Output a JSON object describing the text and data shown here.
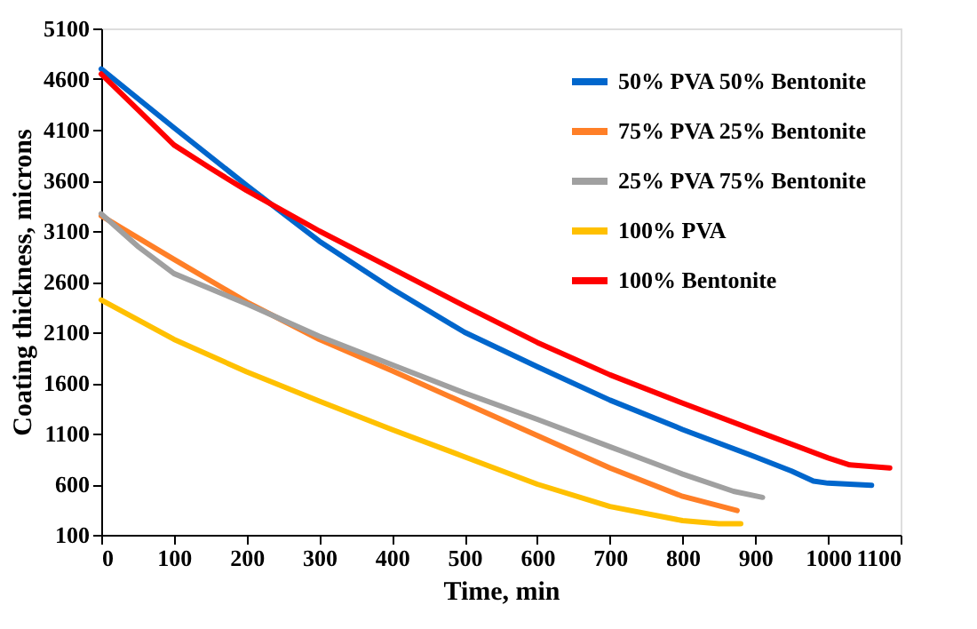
{
  "chart_data": {
    "type": "line",
    "xlabel": "Time, min",
    "ylabel": "Coating thickness, microns",
    "xlim": [
      0,
      1100
    ],
    "xticks": [
      0,
      100,
      200,
      300,
      400,
      500,
      600,
      700,
      800,
      900,
      1000,
      1100
    ],
    "ylim": [
      100,
      5100
    ],
    "yticks": [
      100,
      600,
      1100,
      1600,
      2100,
      2600,
      3100,
      3600,
      4100,
      4600,
      5100
    ],
    "grid": false,
    "legend": "top right",
    "marker": "none",
    "line_style": "solid",
    "series": [
      {
        "name": "50% PVA 50% Bentonite",
        "color": "#0066cc",
        "x": [
          0,
          100,
          200,
          300,
          400,
          500,
          600,
          700,
          800,
          900,
          950,
          980,
          1000,
          1060
        ],
        "values": [
          4700,
          4120,
          3550,
          3000,
          2530,
          2100,
          1760,
          1430,
          1140,
          870,
          730,
          630,
          610,
          590
        ]
      },
      {
        "name": "75% PVA 25% Bentonite",
        "color": "#ff7f27",
        "x": [
          0,
          100,
          200,
          300,
          400,
          500,
          600,
          700,
          800,
          875
        ],
        "values": [
          3250,
          2820,
          2400,
          2030,
          1720,
          1400,
          1080,
          760,
          480,
          340
        ]
      },
      {
        "name": "25% PVA 75% Bentonite",
        "color": "#a0a0a0",
        "x": [
          0,
          50,
          100,
          200,
          300,
          400,
          500,
          600,
          700,
          800,
          870,
          910
        ],
        "values": [
          3270,
          2950,
          2680,
          2380,
          2060,
          1780,
          1500,
          1240,
          970,
          700,
          530,
          470
        ]
      },
      {
        "name": "100% PVA",
        "color": "#ffc000",
        "x": [
          0,
          100,
          200,
          300,
          400,
          500,
          600,
          700,
          800,
          850,
          880
        ],
        "values": [
          2420,
          2030,
          1710,
          1420,
          1140,
          870,
          600,
          380,
          240,
          210,
          210
        ]
      },
      {
        "name": "100% Bentonite",
        "color": "#ff0000",
        "x": [
          0,
          50,
          100,
          150,
          200,
          300,
          400,
          500,
          600,
          700,
          800,
          900,
          1000,
          1030,
          1085
        ],
        "values": [
          4650,
          4300,
          3950,
          3720,
          3500,
          3100,
          2730,
          2360,
          2000,
          1680,
          1400,
          1130,
          860,
          790,
          760
        ]
      }
    ]
  }
}
